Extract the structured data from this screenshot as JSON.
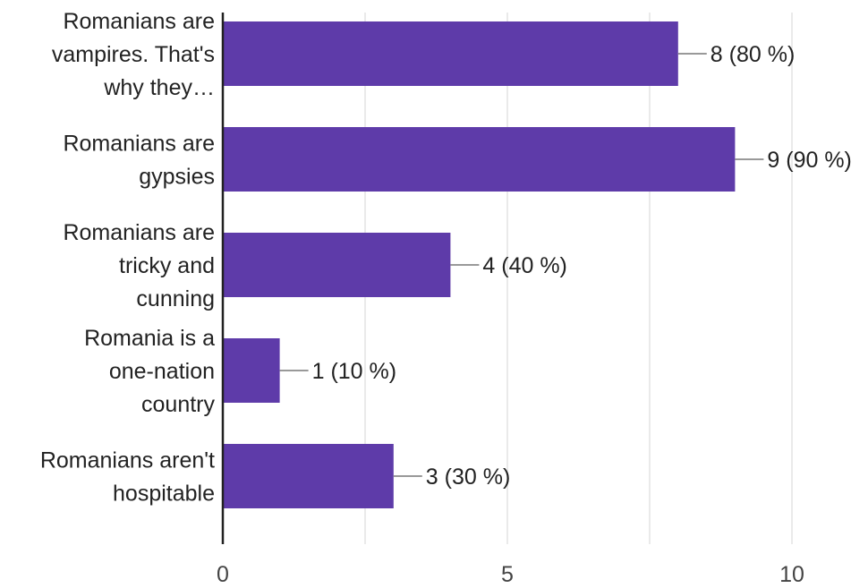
{
  "chart_data": {
    "type": "bar",
    "orientation": "horizontal",
    "categories": [
      [
        "Romanians are",
        "vampires. That's",
        "why they…"
      ],
      [
        "Romanians are",
        "gypsies"
      ],
      [
        "Romanians are",
        "tricky and",
        "cunning"
      ],
      [
        "Romania is a",
        "one-nation",
        "country"
      ],
      [
        "Romanians aren't",
        "hospitable"
      ]
    ],
    "values": [
      8,
      9,
      4,
      1,
      3
    ],
    "value_labels": [
      "8 (80 %)",
      "9 (90 %)",
      "4 (40 %)",
      "1 (10 %)",
      "3 (30 %)"
    ],
    "xlim": [
      0,
      10
    ],
    "xticks": [
      0,
      5,
      10
    ],
    "xtick_labels": [
      "0",
      "5",
      "10"
    ],
    "grid": true,
    "bar_color": "#5e3ba9",
    "gridline_color": "#e3e3e3",
    "axis_color": "#222222",
    "leader_color": "#999999"
  }
}
